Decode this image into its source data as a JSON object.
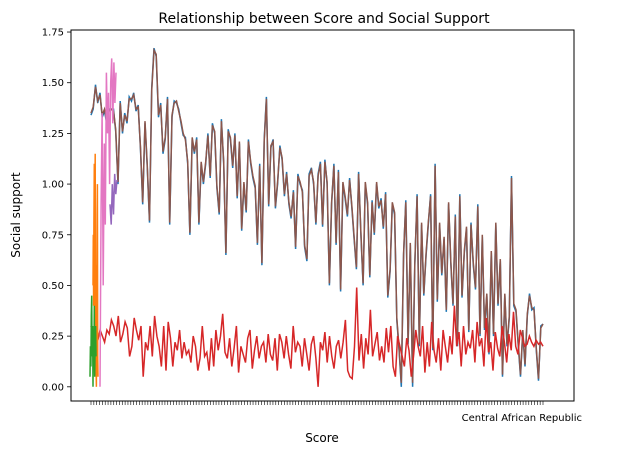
{
  "chart_data": {
    "type": "line",
    "title": "Relationship between Score and Social Support",
    "xlabel": "Score",
    "ylabel": "Social support",
    "ylim": [
      -0.07,
      1.76
    ],
    "yticks": [
      "0.00",
      "0.25",
      "0.50",
      "0.75",
      "1.00",
      "1.25",
      "1.50",
      "1.75"
    ],
    "last_category_label": "Central African Republic",
    "grid": false,
    "legend": "none",
    "series_long": [
      {
        "color": "#1f77b4",
        "values": [
          1.34,
          1.37,
          1.49,
          1.4,
          1.45,
          1.33,
          1.36,
          1.3,
          1.37,
          1.37,
          1.37,
          1.26,
          1.0,
          1.41,
          1.25,
          1.35,
          1.3,
          1.43,
          1.41,
          1.45,
          1.36,
          1.39,
          1.17,
          0.9,
          1.3,
          1.09,
          0.81,
          1.47,
          1.67,
          1.63,
          1.33,
          1.4,
          1.15,
          1.22,
          1.43,
          0.8,
          1.33,
          1.41,
          1.4,
          1.37,
          1.3,
          1.24,
          1.23,
          1.1,
          0.75,
          1.22,
          1.15,
          1.23,
          0.8,
          1.1,
          1.0,
          1.1,
          1.25,
          1.03,
          1.3,
          1.25,
          0.98,
          0.85,
          1.32,
          1.1,
          0.65,
          1.27,
          1.22,
          1.08,
          1.25,
          0.93,
          1.2,
          0.77,
          1.0,
          0.86,
          1.22,
          1.1,
          1.03,
          0.98,
          0.7,
          1.1,
          0.6,
          1.22,
          1.43,
          0.89,
          1.18,
          1.22,
          0.88,
          1.0,
          1.19,
          1.12,
          0.94,
          1.06,
          0.9,
          0.83,
          0.97,
          0.68,
          1.05,
          1.0,
          0.97,
          0.69,
          0.62,
          1.05,
          1.08,
          1.0,
          0.8,
          1.05,
          1.11,
          0.79,
          1.12,
          1.0,
          0.5,
          0.9,
          1.1,
          0.7,
          1.07,
          0.47,
          1.0,
          0.93,
          0.84,
          1.03,
          0.88,
          0.73,
          0.58,
          1.06,
          0.75,
          0.5,
          1.0,
          0.9,
          0.54,
          0.92,
          0.75,
          1.0,
          0.88,
          0.93,
          0.78,
          0.96,
          0.44,
          0.57,
          0.9,
          0.85,
          0.33,
          0.18,
          0.0,
          0.65,
          0.92,
          0.21,
          0.7,
          0.0,
          0.6,
          0.95,
          0.2,
          0.8,
          0.45,
          0.65,
          0.8,
          0.95,
          0.18,
          1.1,
          0.42,
          0.8,
          0.55,
          0.73,
          0.37,
          0.9,
          0.61,
          0.4,
          0.85,
          0.2,
          0.95,
          0.44,
          0.66,
          0.78,
          0.27,
          0.81,
          0.6,
          0.48,
          0.9,
          0.25,
          0.74,
          0.28,
          0.45,
          0.16,
          0.66,
          0.25,
          0.8,
          0.4,
          0.62,
          0.05,
          0.45,
          0.2,
          0.34,
          1.04,
          0.4,
          0.37,
          0.2,
          0.05,
          0.27,
          0.1,
          0.35,
          0.46,
          0.38,
          0.39,
          0.18,
          0.03,
          0.3,
          0.31
        ]
      },
      {
        "color": "#8c564b",
        "values": [
          1.35,
          1.38,
          1.48,
          1.41,
          1.44,
          1.34,
          1.37,
          1.31,
          1.36,
          1.37,
          1.36,
          1.27,
          1.01,
          1.4,
          1.26,
          1.34,
          1.31,
          1.42,
          1.42,
          1.44,
          1.37,
          1.38,
          1.18,
          0.91,
          1.31,
          1.1,
          0.82,
          1.46,
          1.66,
          1.64,
          1.34,
          1.39,
          1.16,
          1.23,
          1.42,
          0.81,
          1.34,
          1.4,
          1.41,
          1.36,
          1.31,
          1.25,
          1.22,
          1.11,
          0.76,
          1.23,
          1.16,
          1.22,
          0.81,
          1.11,
          1.01,
          1.11,
          1.24,
          1.04,
          1.29,
          1.26,
          0.99,
          0.86,
          1.31,
          1.11,
          0.66,
          1.26,
          1.23,
          1.09,
          1.24,
          0.94,
          1.21,
          0.78,
          1.01,
          0.87,
          1.21,
          1.11,
          1.04,
          0.99,
          0.71,
          1.09,
          0.61,
          1.21,
          1.42,
          0.9,
          1.19,
          1.21,
          0.89,
          1.01,
          1.18,
          1.13,
          0.95,
          1.05,
          0.91,
          0.84,
          0.96,
          0.69,
          1.04,
          1.01,
          0.96,
          0.7,
          0.63,
          1.04,
          1.07,
          1.01,
          0.81,
          1.04,
          1.1,
          0.8,
          1.11,
          1.01,
          0.51,
          0.91,
          1.09,
          0.71,
          1.06,
          0.48,
          1.01,
          0.94,
          0.85,
          1.02,
          0.89,
          0.74,
          0.59,
          1.05,
          0.76,
          0.51,
          1.01,
          0.91,
          0.55,
          0.91,
          0.76,
          1.01,
          0.89,
          0.92,
          0.79,
          0.95,
          0.45,
          0.58,
          0.91,
          0.86,
          0.34,
          0.19,
          0.02,
          0.66,
          0.91,
          0.22,
          0.71,
          0.02,
          0.61,
          0.94,
          0.21,
          0.81,
          0.46,
          0.66,
          0.81,
          0.94,
          0.19,
          1.09,
          0.43,
          0.81,
          0.56,
          0.74,
          0.38,
          0.91,
          0.62,
          0.41,
          0.84,
          0.21,
          0.94,
          0.45,
          0.67,
          0.79,
          0.28,
          0.8,
          0.61,
          0.49,
          0.89,
          0.26,
          0.75,
          0.29,
          0.46,
          0.17,
          0.67,
          0.26,
          0.81,
          0.41,
          0.63,
          0.06,
          0.46,
          0.21,
          0.35,
          1.03,
          0.41,
          0.38,
          0.21,
          0.06,
          0.28,
          0.11,
          0.36,
          0.45,
          0.39,
          0.38,
          0.19,
          0.04,
          0.29,
          0.31
        ]
      },
      {
        "color": "#d62728",
        "values": [
          0.3,
          0.25,
          0.27,
          0.23,
          0.28,
          0.25,
          0.22,
          0.28,
          0.26,
          0.33,
          0.3,
          0.25,
          0.35,
          0.22,
          0.26,
          0.32,
          0.29,
          0.15,
          0.2,
          0.34,
          0.28,
          0.23,
          0.3,
          0.05,
          0.22,
          0.18,
          0.3,
          0.15,
          0.35,
          0.25,
          0.2,
          0.1,
          0.3,
          0.08,
          0.32,
          0.24,
          0.1,
          0.22,
          0.18,
          0.28,
          0.14,
          0.22,
          0.16,
          0.18,
          0.12,
          0.25,
          0.2,
          0.08,
          0.14,
          0.3,
          0.15,
          0.17,
          0.08,
          0.24,
          0.1,
          0.28,
          0.18,
          0.25,
          0.36,
          0.17,
          0.14,
          0.24,
          0.1,
          0.19,
          0.3,
          0.07,
          0.2,
          0.16,
          0.12,
          0.24,
          0.28,
          0.09,
          0.18,
          0.25,
          0.14,
          0.2,
          0.22,
          0.12,
          0.26,
          0.16,
          0.13,
          0.24,
          0.08,
          0.26,
          0.22,
          0.14,
          0.25,
          0.16,
          0.09,
          0.3,
          0.17,
          0.22,
          0.2,
          0.1,
          0.24,
          0.16,
          0.08,
          0.21,
          0.25,
          0.14,
          0.0,
          0.22,
          0.18,
          0.27,
          0.12,
          0.25,
          0.15,
          0.09,
          0.2,
          0.23,
          0.14,
          0.22,
          0.33,
          0.08,
          0.05,
          0.04,
          0.2,
          0.49,
          0.13,
          0.26,
          0.09,
          0.24,
          0.16,
          0.38,
          0.15,
          0.21,
          0.27,
          0.13,
          0.2,
          0.12,
          0.29,
          0.17,
          0.3,
          0.1,
          0.05,
          0.25,
          0.2,
          0.15,
          0.1,
          0.24,
          0.18,
          0.05,
          0.15,
          0.28,
          0.2,
          0.15,
          0.3,
          0.07,
          0.22,
          0.1,
          0.32,
          0.18,
          0.12,
          0.24,
          0.08,
          0.28,
          0.2,
          0.12,
          0.25,
          0.16,
          0.4,
          0.2,
          0.27,
          0.1,
          0.3,
          0.16,
          0.22,
          0.19,
          0.28,
          0.12,
          0.32,
          0.2,
          0.24,
          0.1,
          0.34,
          0.17,
          0.22,
          0.08,
          0.27,
          0.19,
          0.15,
          0.3,
          0.22,
          0.12,
          0.26,
          0.18,
          0.37,
          0.2,
          0.16,
          0.28,
          0.24,
          0.2,
          0.21,
          0.25,
          0.22,
          0.2,
          0.23,
          0.21,
          0.22,
          0.2
        ]
      }
    ],
    "series_short": [
      {
        "color": "#ff7f0e",
        "values": [
          0.5,
          0.75,
          0.4,
          0.8,
          1.1,
          0.3,
          0.95,
          1.15,
          0.2,
          0.6,
          0.08,
          0.0,
          0.45,
          0.85,
          1.0,
          0.15,
          0.05
        ]
      },
      {
        "color": "#2ca02c",
        "values": [
          0.05,
          0.2,
          0.1,
          0.35,
          0.45,
          0.15,
          0.3,
          0.0,
          0.25,
          0.1,
          0.4,
          0.05,
          0.2,
          0.3,
          0.15
        ]
      },
      {
        "color": "#e377c2",
        "values": [
          0.0,
          0.9,
          1.35,
          0.5,
          1.2,
          0.8,
          1.55,
          1.25,
          1.45,
          1.0,
          1.5,
          1.62,
          1.3,
          1.6,
          1.4,
          1.55
        ]
      },
      {
        "color": "#9467bd",
        "values": [
          0.9,
          0.8,
          1.0,
          0.85,
          1.05,
          0.95,
          1.02
        ]
      }
    ]
  }
}
